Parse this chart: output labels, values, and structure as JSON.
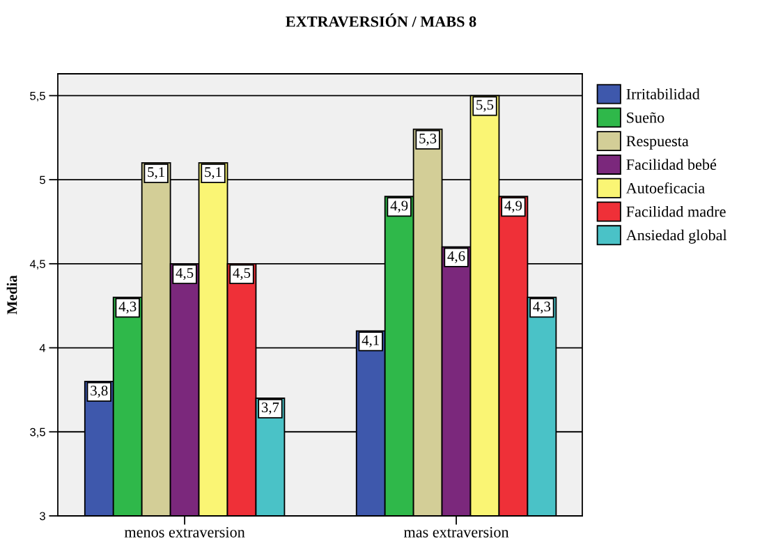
{
  "chart_data": {
    "type": "bar",
    "title": "EXTRAVERSIÓN / MABS 8",
    "ylabel": "Media",
    "categories": [
      "menos extraversion",
      "mas extraversion"
    ],
    "series": [
      {
        "name": "Irritabilidad",
        "color": "#3e58ac",
        "values": [
          3.8,
          4.1
        ],
        "value_labels": [
          "3,8",
          "4,1"
        ]
      },
      {
        "name": "Sueño",
        "color": "#2fb84a",
        "values": [
          4.3,
          4.9
        ],
        "value_labels": [
          "4,3",
          "4,9"
        ]
      },
      {
        "name": "Respuesta",
        "color": "#d3ce97",
        "values": [
          5.1,
          5.3
        ],
        "value_labels": [
          "5,1",
          "5,3"
        ]
      },
      {
        "name": "Facilidad bebé",
        "color": "#7b287c",
        "values": [
          4.5,
          4.6
        ],
        "value_labels": [
          "4,5",
          "4,6"
        ]
      },
      {
        "name": "Autoeficacia",
        "color": "#faf574",
        "values": [
          5.1,
          5.5
        ],
        "value_labels": [
          "5,1",
          "5,5"
        ]
      },
      {
        "name": "Facilidad madre",
        "color": "#ef3038",
        "values": [
          4.5,
          4.9
        ],
        "value_labels": [
          "4,5",
          "4,9"
        ]
      },
      {
        "name": "Ansiedad global",
        "color": "#4ac2c7",
        "values": [
          3.7,
          4.3
        ],
        "value_labels": [
          "3,7",
          "4,3"
        ]
      }
    ],
    "ylim": [
      3,
      5.63
    ],
    "yticks": [
      3,
      {
        "value": 3.5,
        "label": "3,5"
      },
      4,
      {
        "value": 4.5,
        "label": "4,5"
      },
      5,
      {
        "value": 5.5,
        "label": "5,5"
      }
    ],
    "grid": "y",
    "legend": "right"
  }
}
